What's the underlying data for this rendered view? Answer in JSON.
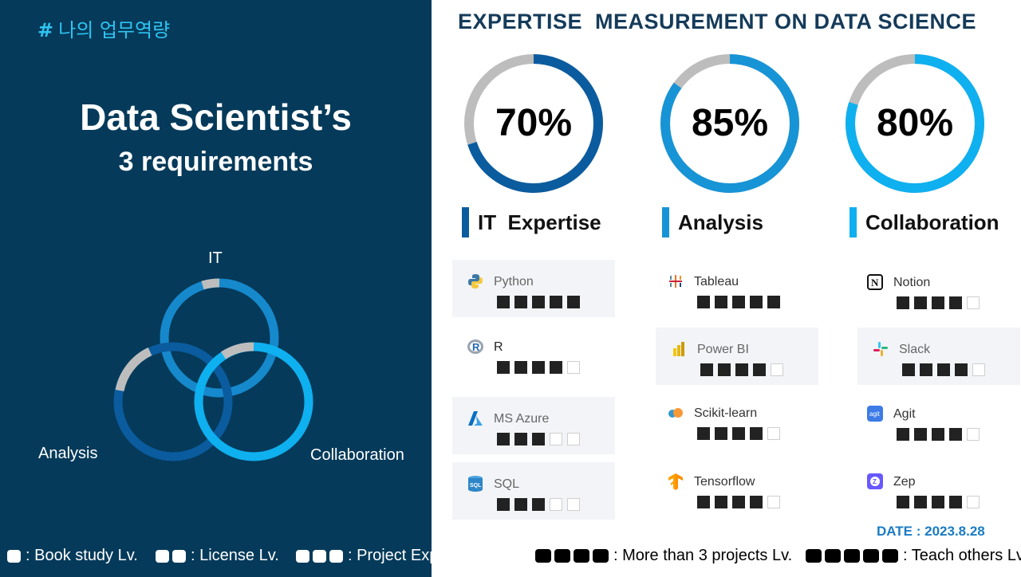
{
  "left": {
    "tag_hash": "#",
    "tag_text": "나의 업무역량",
    "title": "Data Scientist’s",
    "subtitle": "3 requirements",
    "venn": {
      "top_label": "IT",
      "left_label": "Analysis",
      "right_label": "Collaboration"
    }
  },
  "header": "EXPERTISE  MEASUREMENT ON DATA SCIENCE",
  "gauges": [
    {
      "value": 70,
      "label": "70%",
      "color": "#0b5c9e"
    },
    {
      "value": 85,
      "label": "85%",
      "color": "#1794d6"
    },
    {
      "value": 80,
      "label": "80%",
      "color": "#0fb0ef"
    }
  ],
  "categories": [
    {
      "label": "IT  Expertise",
      "color": "#0b5c9e"
    },
    {
      "label": "Analysis",
      "color": "#1794d6"
    },
    {
      "label": "Collaboration",
      "color": "#0fb0ef"
    }
  ],
  "tools": [
    [
      {
        "name": "Python",
        "level": 5,
        "icon": "python-icon"
      },
      {
        "name": "R",
        "level": 4,
        "icon": "r-icon"
      },
      {
        "name": "MS Azure",
        "level": 3,
        "icon": "azure-icon"
      },
      {
        "name": "SQL",
        "level": 3,
        "icon": "sql-icon"
      }
    ],
    [
      {
        "name": "Tableau",
        "level": 5,
        "icon": "tableau-icon"
      },
      {
        "name": "Power BI",
        "level": 4,
        "icon": "powerbi-icon"
      },
      {
        "name": "Scikit-learn",
        "level": 4,
        "icon": "scikit-learn-icon"
      },
      {
        "name": "Tensorflow",
        "level": 4,
        "icon": "tensorflow-icon"
      }
    ],
    [
      {
        "name": "Notion",
        "level": 4,
        "icon": "notion-icon"
      },
      {
        "name": "Slack",
        "level": 4,
        "icon": "slack-icon"
      },
      {
        "name": "Agit",
        "level": 4,
        "icon": "agit-icon"
      },
      {
        "name": "Zep",
        "level": 4,
        "icon": "zep-icon"
      }
    ]
  ],
  "date": "DATE : 2023.8.28",
  "legend": [
    {
      "boxes": 1,
      "text": ": Book study Lv."
    },
    {
      "boxes": 2,
      "text": ": License Lv."
    },
    {
      "boxes": 3,
      "text": ": Project Experience Lv."
    },
    {
      "boxes": 4,
      "text": ": More than 3 projects Lv."
    },
    {
      "boxes": 5,
      "text": ": Teach others Lv."
    }
  ]
}
